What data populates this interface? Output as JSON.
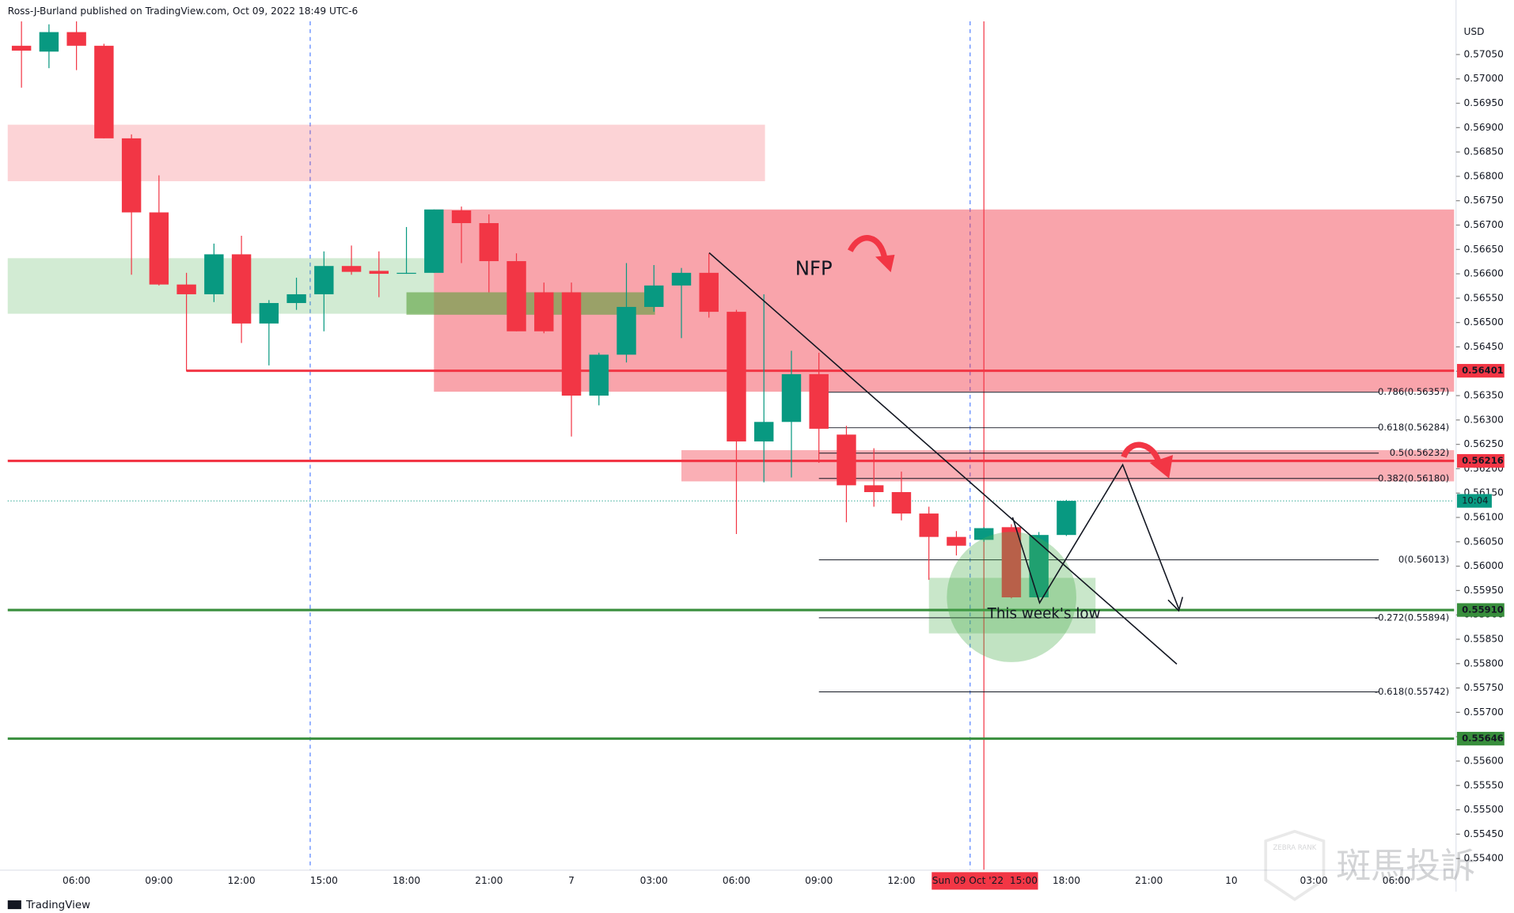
{
  "header": "Ross-J-Burland published on TradingView.com, Oct 09, 2022 18:49 UTC-6",
  "footer": "TradingView",
  "watermark": {
    "brand": "斑馬投訴",
    "sub": "ZEBRA RANK"
  },
  "chart_data": {
    "type": "candlestick",
    "currency": "USD",
    "x": [
      4,
      5,
      6,
      7,
      8,
      9,
      10,
      11,
      12,
      13,
      14,
      15,
      16,
      17,
      18,
      19,
      20,
      21,
      22,
      23,
      24,
      25,
      26,
      27,
      28,
      29,
      30,
      31,
      32,
      33,
      34,
      35,
      36,
      37,
      38,
      39,
      40,
      41,
      42
    ],
    "open": [
      0.57068,
      0.57056,
      0.57096,
      0.57068,
      0.56878,
      0.56726,
      0.56578,
      0.56558,
      0.5664,
      0.56498,
      0.5654,
      0.56558,
      0.56616,
      0.56606,
      0.566,
      0.56602,
      0.5673,
      0.56704,
      0.56626,
      0.56562,
      0.56562,
      0.5635,
      0.56434,
      0.56532,
      0.56576,
      0.56602,
      0.56522,
      0.56256,
      0.56296,
      0.56394,
      0.5627,
      0.56166,
      0.56152,
      0.56108,
      0.5606,
      0.56054,
      0.5608,
      0.55936,
      0.56064
    ],
    "high": [
      0.57118,
      0.57112,
      0.57118,
      0.57072,
      0.56886,
      0.56802,
      0.56602,
      0.56662,
      0.56678,
      0.56546,
      0.56592,
      0.56646,
      0.56658,
      0.56646,
      0.56696,
      0.56732,
      0.56738,
      0.56722,
      0.56642,
      0.56582,
      0.56582,
      0.56438,
      0.56622,
      0.56618,
      0.56612,
      0.56642,
      0.56526,
      0.56558,
      0.56442,
      0.56438,
      0.56288,
      0.56242,
      0.56194,
      0.56122,
      0.56072,
      0.5608,
      0.56086,
      0.5607,
      0.56136
    ],
    "low": [
      0.56982,
      0.57022,
      0.57018,
      0.56878,
      0.56598,
      0.56576,
      0.564,
      0.56542,
      0.56458,
      0.56412,
      0.56526,
      0.56482,
      0.56598,
      0.56552,
      0.566,
      0.56602,
      0.56622,
      0.56562,
      0.56482,
      0.56478,
      0.56266,
      0.5633,
      0.56418,
      0.56522,
      0.56468,
      0.5651,
      0.56066,
      0.56172,
      0.56182,
      0.56212,
      0.5609,
      0.56122,
      0.56094,
      0.55972,
      0.56022,
      0.5605,
      0.55934,
      0.55932,
      0.56062
    ],
    "close": [
      0.57058,
      0.57096,
      0.57068,
      0.56878,
      0.56726,
      0.56578,
      0.56558,
      0.5664,
      0.56498,
      0.5654,
      0.56558,
      0.56616,
      0.56604,
      0.566,
      0.56602,
      0.56732,
      0.56704,
      0.56626,
      0.56482,
      0.56482,
      0.5635,
      0.56434,
      0.56532,
      0.56576,
      0.56602,
      0.56522,
      0.56256,
      0.56296,
      0.56394,
      0.56282,
      0.56166,
      0.56152,
      0.56108,
      0.5606,
      0.56042,
      0.56078,
      0.55936,
      0.56064,
      0.56134
    ],
    "up_color": "#089981",
    "down_color": "#f23645",
    "xlim": [
      3.5,
      56.1
    ],
    "xticks": [
      {
        "value": 6,
        "label": "06:00"
      },
      {
        "value": 9,
        "label": "09:00"
      },
      {
        "value": 12,
        "label": "12:00"
      },
      {
        "value": 15,
        "label": "15:00"
      },
      {
        "value": 18,
        "label": "18:00"
      },
      {
        "value": 21,
        "label": "21:00"
      },
      {
        "value": 24,
        "label": "7"
      },
      {
        "value": 27,
        "label": "03:00"
      },
      {
        "value": 30,
        "label": "06:00"
      },
      {
        "value": 33,
        "label": "09:00"
      },
      {
        "value": 36,
        "label": "12:00"
      },
      {
        "value": 42,
        "label": "18:00"
      },
      {
        "value": 45,
        "label": "21:00"
      },
      {
        "value": 48,
        "label": "10"
      },
      {
        "value": 51,
        "label": "03:00"
      },
      {
        "value": 54,
        "label": "06:00"
      }
    ],
    "ylim": [
      0.55376,
      0.57118
    ],
    "yticks": [
      {
        "value": 0.554,
        "label": "0.55400"
      },
      {
        "value": 0.5545,
        "label": "0.55450"
      },
      {
        "value": 0.555,
        "label": "0.55500"
      },
      {
        "value": 0.5555,
        "label": "0.55550"
      },
      {
        "value": 0.556,
        "label": "0.55600"
      },
      {
        "value": 0.5565,
        "label": "0.55650"
      },
      {
        "value": 0.557,
        "label": "0.55700"
      },
      {
        "value": 0.5575,
        "label": "0.55750"
      },
      {
        "value": 0.558,
        "label": "0.55800"
      },
      {
        "value": 0.5585,
        "label": "0.55850"
      },
      {
        "value": 0.559,
        "label": "0.55900"
      },
      {
        "value": 0.5595,
        "label": "0.55950"
      },
      {
        "value": 0.56,
        "label": "0.56000"
      },
      {
        "value": 0.5605,
        "label": "0.56050"
      },
      {
        "value": 0.561,
        "label": "0.56100"
      },
      {
        "value": 0.5615,
        "label": "0.56150"
      },
      {
        "value": 0.562,
        "label": "0.56200"
      },
      {
        "value": 0.5625,
        "label": "0.56250"
      },
      {
        "value": 0.563,
        "label": "0.56300"
      },
      {
        "value": 0.5635,
        "label": "0.56350"
      },
      {
        "value": 0.564,
        "label": "0.56400"
      },
      {
        "value": 0.5645,
        "label": "0.56450"
      },
      {
        "value": 0.565,
        "label": "0.56500"
      },
      {
        "value": 0.5655,
        "label": "0.56550"
      },
      {
        "value": 0.566,
        "label": "0.56600"
      },
      {
        "value": 0.5665,
        "label": "0.56650"
      },
      {
        "value": 0.567,
        "label": "0.56700"
      },
      {
        "value": 0.5675,
        "label": "0.56750"
      },
      {
        "value": 0.568,
        "label": "0.56800"
      },
      {
        "value": 0.5685,
        "label": "0.56850"
      },
      {
        "value": 0.569,
        "label": "0.56900"
      },
      {
        "value": 0.5695,
        "label": "0.56950"
      },
      {
        "value": 0.57,
        "label": "0.57000"
      },
      {
        "value": 0.5705,
        "label": "0.57050"
      }
    ],
    "grid": false,
    "crosshair": {
      "x": 39,
      "label": "Sun 09 Oct '22  15:00",
      "color": "#f23645"
    },
    "session_breaks": [
      14.5,
      38.5
    ],
    "countdown": "10:04",
    "zones": [
      {
        "top": 0.56906,
        "bottom": 0.5679,
        "end": 31.04,
        "color": "rgba(242,54,69,0.22)"
      },
      {
        "top": 0.56632,
        "bottom": 0.56518,
        "end": 19,
        "color": "rgba(76,175,80,0.25)"
      },
      {
        "top": 0.56732,
        "bottom": 0.56358,
        "start": 19,
        "color": "rgba(242,54,69,0.45)"
      },
      {
        "top": 0.56562,
        "bottom": 0.56516,
        "start": 18,
        "end": 27.04,
        "color": "rgba(90,160,60,0.6)"
      },
      {
        "top": 0.56238,
        "bottom": 0.56174,
        "start": 28,
        "color": "rgba(242,54,69,0.4)"
      },
      {
        "top": 0.55976,
        "bottom": 0.55862,
        "start": 37,
        "end": 43.06,
        "color": "rgba(76,175,80,0.3)"
      }
    ],
    "levels": [
      {
        "value": 0.56401,
        "label": "0.56401",
        "color": "#f23645",
        "start": 10
      },
      {
        "value": 0.56216,
        "label": "0.56216",
        "color": "#f23645"
      },
      {
        "value": 0.5591,
        "label": "0.55910",
        "color": "#388e3c"
      },
      {
        "value": 0.55646,
        "label": "0.55646",
        "color": "#388e3c"
      }
    ],
    "fib_start": 33,
    "fib": [
      {
        "value": 0.56357,
        "label": "0.786(0.56357)"
      },
      {
        "value": 0.56284,
        "label": "0.618(0.56284)"
      },
      {
        "value": 0.56232,
        "label": "0.5(0.56232)"
      },
      {
        "value": 0.5618,
        "label": "0.382(0.56180)"
      },
      {
        "value": 0.56013,
        "label": "0(0.56013)"
      },
      {
        "value": 0.55894,
        "label": "-0.272(0.55894)"
      },
      {
        "value": 0.55742,
        "label": "-0.618(0.55742)"
      }
    ],
    "annotations": [
      {
        "text": "NFP"
      },
      {
        "text": "This week's low"
      }
    ]
  }
}
